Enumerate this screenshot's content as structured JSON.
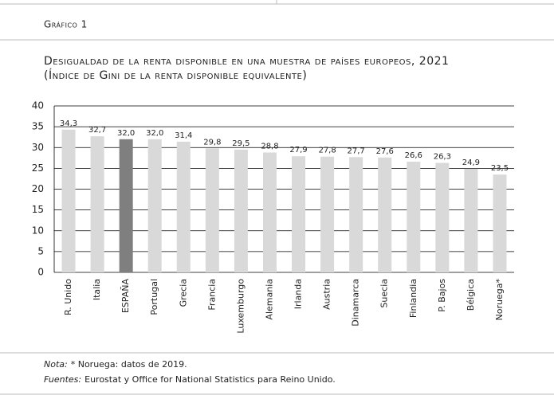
{
  "header": {
    "label": "Gráfico 1"
  },
  "chart_data": {
    "type": "bar",
    "title": "Desigualdad de la renta disponible en una muestra de países europeos, 2021",
    "subtitle": "(Índice de Gini de la renta disponible equivalente)",
    "categories": [
      "R. Unido",
      "Italia",
      "ESPAÑA",
      "Portugal",
      "Grecia",
      "Francia",
      "Luxemburgo",
      "Alemania",
      "Irlanda",
      "Austria",
      "Dinamarca",
      "Suecia",
      "Finlandia",
      "P. Bajos",
      "Bélgica",
      "Noruega*"
    ],
    "values": [
      34.3,
      32.7,
      32.0,
      32.0,
      31.4,
      29.8,
      29.5,
      28.8,
      27.9,
      27.8,
      27.7,
      27.6,
      26.6,
      26.3,
      24.9,
      23.5
    ],
    "value_labels": [
      "34,3",
      "32,7",
      "32,0",
      "32,0",
      "31,4",
      "29,8",
      "29,5",
      "28,8",
      "27,9",
      "27,8",
      "27,7",
      "27,6",
      "26,6",
      "26,3",
      "24,9",
      "23,5"
    ],
    "colors": [
      "#d9d9d9",
      "#d9d9d9",
      "#7f7f7f",
      "#d9d9d9",
      "#d9d9d9",
      "#d9d9d9",
      "#d9d9d9",
      "#d9d9d9",
      "#d9d9d9",
      "#d9d9d9",
      "#d9d9d9",
      "#d9d9d9",
      "#d9d9d9",
      "#d9d9d9",
      "#d9d9d9",
      "#d9d9d9"
    ],
    "ylim": [
      0,
      40
    ],
    "yticks": [
      0,
      5,
      10,
      15,
      20,
      25,
      30,
      35,
      40
    ],
    "grid": true
  },
  "footer": {
    "note_label": "Nota:",
    "note": "* Noruega: datos de 2019.",
    "sources_label": "Fuentes:",
    "sources": "Eurostat y Office for National Statistics para Reino Unido."
  }
}
